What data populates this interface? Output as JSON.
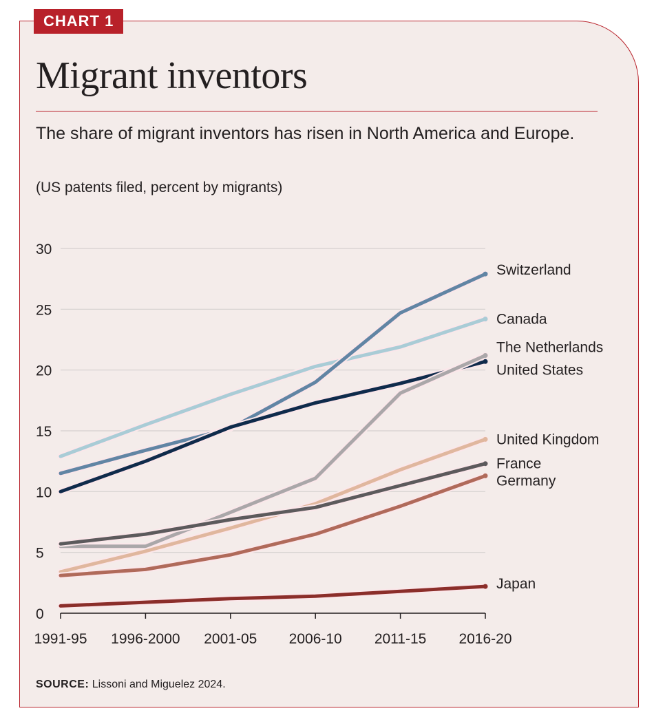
{
  "header": {
    "tag": "CHART 1",
    "title": "Migrant inventors",
    "subtitle": "The share of migrant inventors has risen in North America and Europe.",
    "units": "(US patents filed, percent by migrants)"
  },
  "source": {
    "label": "SOURCE:",
    "text": "Lissoni and Miguelez 2024."
  },
  "chart_data": {
    "type": "line",
    "title": "Migrant inventors",
    "xlabel": "",
    "ylabel": "US patents filed, percent by migrants",
    "categories": [
      "1991-95",
      "1996-2000",
      "2001-05",
      "2006-10",
      "2011-15",
      "2016-20"
    ],
    "ylim": [
      0,
      30
    ],
    "yticks": [
      0,
      5,
      10,
      15,
      20,
      25,
      30
    ],
    "grid": true,
    "legend": "direct labels at line ends (right)",
    "series": [
      {
        "name": "Canada",
        "color": "#a9ccd6",
        "values": [
          12.9,
          15.5,
          18.0,
          20.3,
          21.9,
          24.2
        ]
      },
      {
        "name": "Switzerland",
        "color": "#6185a4",
        "values": [
          11.5,
          13.4,
          15.2,
          19.0,
          24.7,
          27.9
        ]
      },
      {
        "name": "United States",
        "color": "#0f2b4b",
        "values": [
          10.0,
          12.5,
          15.3,
          17.3,
          18.9,
          20.7
        ]
      },
      {
        "name": "The Netherlands",
        "color": "#aaa7a9",
        "values": [
          5.5,
          5.5,
          8.3,
          11.1,
          18.1,
          21.2
        ]
      },
      {
        "name": "United Kingdom",
        "color": "#e0b79e",
        "values": [
          3.4,
          5.1,
          7.0,
          9.0,
          11.8,
          14.3
        ]
      },
      {
        "name": "France",
        "color": "#5c5a5c",
        "values": [
          5.7,
          6.5,
          7.7,
          8.7,
          10.5,
          12.3
        ]
      },
      {
        "name": "Germany",
        "color": "#b06a5a",
        "values": [
          3.1,
          3.6,
          4.8,
          6.5,
          8.8,
          11.3
        ]
      },
      {
        "name": "Japan",
        "color": "#8b2e2a",
        "values": [
          0.6,
          0.9,
          1.2,
          1.4,
          1.8,
          2.2
        ]
      }
    ]
  }
}
